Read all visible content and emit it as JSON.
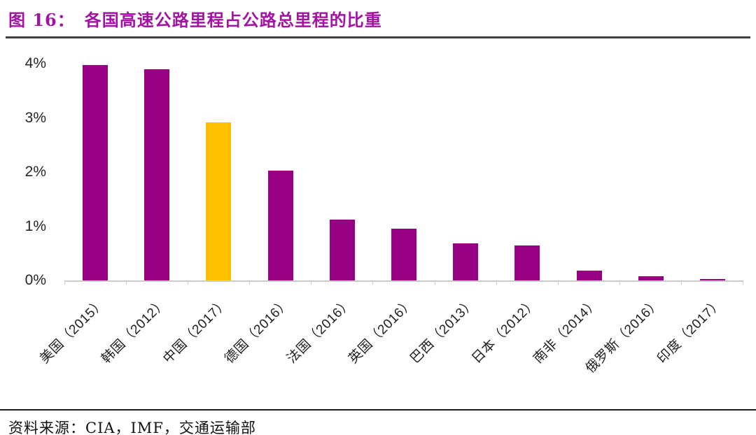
{
  "header": {
    "figure_label": "图 16：",
    "title": "各国高速公路里程占公路总里程的比重"
  },
  "chart_data": {
    "type": "bar",
    "title": "各国高速公路里程占公路总里程的比重",
    "categories": [
      "美国（2015）",
      "韩国（2012）",
      "中国（2017）",
      "德国（2016）",
      "法国（2016）",
      "英国（2016）",
      "巴西（2013）",
      "日本（2012）",
      "南非（2014）",
      "俄罗斯（2016）",
      "印度（2017）"
    ],
    "values": [
      3.97,
      3.9,
      2.92,
      2.02,
      1.12,
      0.95,
      0.69,
      0.65,
      0.18,
      0.08,
      0.03
    ],
    "unit": "%",
    "xlabel": "",
    "ylabel": "",
    "ylim": [
      0,
      4
    ],
    "y_ticks": [
      0,
      1,
      2,
      3,
      4
    ],
    "y_tick_labels": [
      "0%",
      "1%",
      "2%",
      "3%",
      "4%"
    ],
    "grid": false,
    "legend": "none",
    "highlight_index": 2,
    "colors": {
      "bar_default": "#970082",
      "bar_highlight": "#FFC000",
      "title_accent": "#A313A3",
      "axis_line": "#cccccc"
    }
  },
  "footer": {
    "source": "资料来源：CIA，IMF，交通运输部"
  }
}
